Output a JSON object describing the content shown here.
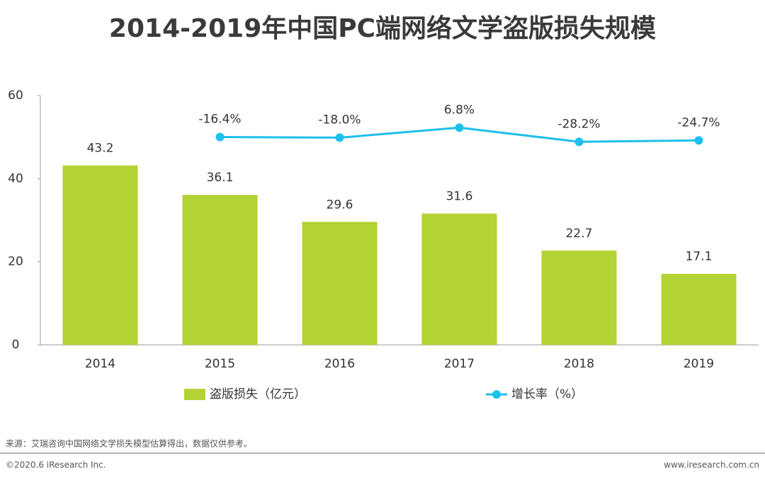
{
  "chart_data": {
    "type": "bar",
    "title": "2014-2019年中国PC端网络文学盗版损失规模",
    "categories": [
      "2014",
      "2015",
      "2016",
      "2017",
      "2018",
      "2019"
    ],
    "series": [
      {
        "name": "盗版损失（亿元）",
        "type": "bar",
        "color": "#b3d234",
        "values": [
          43.2,
          36.1,
          29.6,
          31.6,
          22.7,
          17.1
        ]
      },
      {
        "name": "增长率（%）",
        "type": "line",
        "axis": "y2",
        "color": "#1ec0eb",
        "values": [
          null,
          -16.4,
          -18.0,
          6.8,
          -28.2,
          -24.7
        ],
        "value_labels": [
          null,
          "-16.4%",
          "-18.0%",
          "6.8%",
          "-28.2%",
          "-24.7%"
        ]
      }
    ],
    "ylim": [
      0,
      60
    ],
    "yticks": [
      0,
      20,
      40,
      60
    ],
    "y2lim": [
      -530,
      86
    ],
    "source": "来源：艾瑞咨询中国网络文学损失模型估算得出，数据仅供参考。",
    "copyright": "©2020.6 iResearch Inc.",
    "website": "www.iresearch.com.cn"
  }
}
